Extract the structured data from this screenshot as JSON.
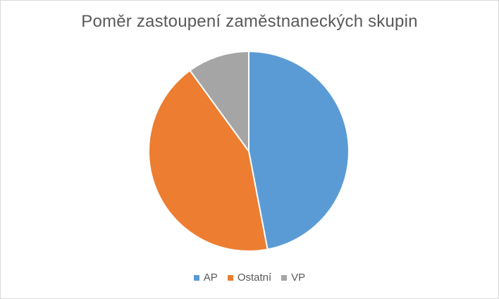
{
  "chart_data": {
    "type": "pie",
    "title": "Poměr zastoupení zaměstnaneckých skupin",
    "legend_position": "bottom",
    "categories": [
      "AP",
      "Ostatní",
      "VP"
    ],
    "values": [
      47,
      43,
      10
    ],
    "colors": [
      "#5b9bd5",
      "#ed7d31",
      "#a5a5a5"
    ]
  }
}
